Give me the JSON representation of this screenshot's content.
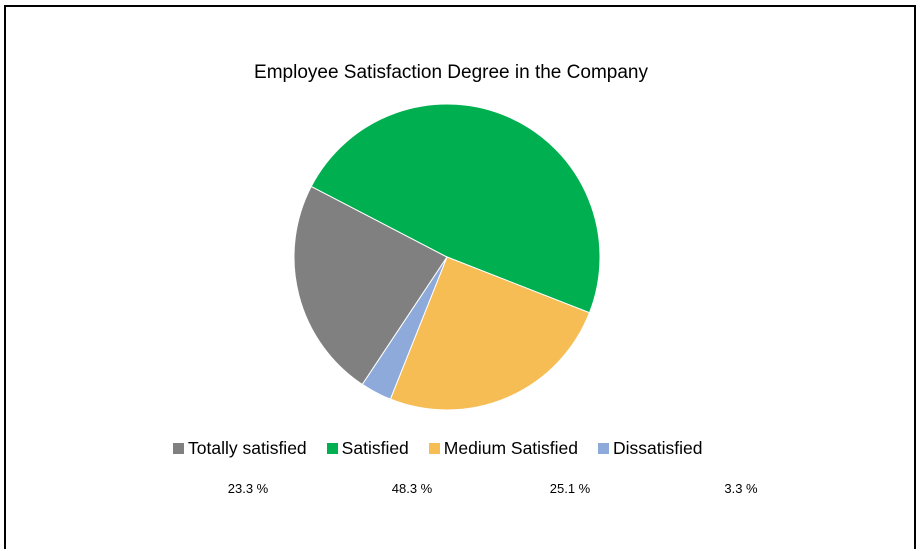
{
  "chart_data": {
    "type": "pie",
    "title": "Employee Satisfaction Degree in the Company",
    "categories": [
      "Totally satisfied",
      "Satisfied",
      "Medium Satisfied",
      "Dissatisfied"
    ],
    "values": [
      23.3,
      48.3,
      25.1,
      3.3
    ],
    "value_labels": [
      "23.3 %",
      "48.3 %",
      "25.1 %",
      "3.3 %"
    ],
    "colors": [
      "#808080",
      "#00b050",
      "#f6bd55",
      "#8eaadb"
    ],
    "legend_position": "bottom"
  }
}
